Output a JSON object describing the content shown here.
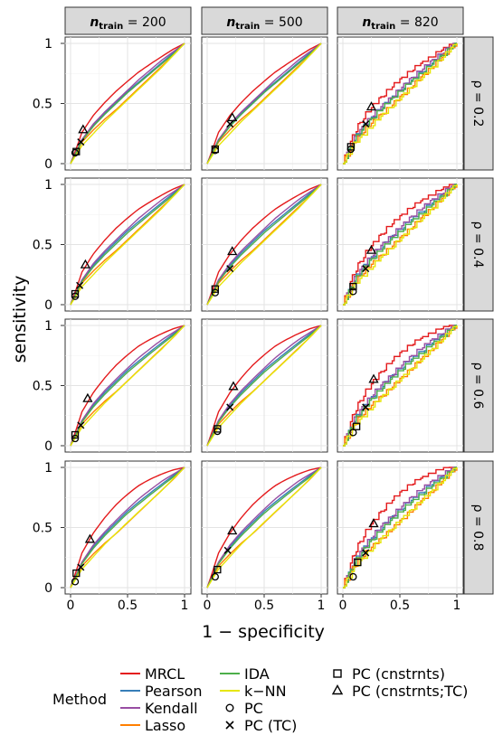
{
  "chart_data": {
    "type": "line",
    "xlabel": "1 − specificity",
    "ylabel": "sensitivity",
    "xlim": [
      0,
      1
    ],
    "ylim": [
      0,
      1
    ],
    "x_ticks": [
      "0",
      "0.5",
      "1"
    ],
    "y_ticks": [
      "0",
      "0.5",
      "1"
    ],
    "grid": true,
    "legend_position": "bottom",
    "legend_title": "Method",
    "columns": [
      {
        "prefix": "n",
        "subscript": "train",
        "value": "= 200"
      },
      {
        "prefix": "n",
        "subscript": "train",
        "value": "= 500"
      },
      {
        "prefix": "n",
        "subscript": "train",
        "value": "= 820"
      }
    ],
    "rows": [
      "ρ = 0.2",
      "ρ = 0.4",
      "ρ = 0.6",
      "ρ = 0.8"
    ],
    "series": [
      {
        "name": "MRCL",
        "color": "#e41a1c",
        "base": [
          [
            0,
            0
          ],
          [
            0.05,
            0.12
          ],
          [
            0.1,
            0.25
          ],
          [
            0.2,
            0.38
          ],
          [
            0.3,
            0.48
          ],
          [
            0.4,
            0.57
          ],
          [
            0.5,
            0.65
          ],
          [
            0.6,
            0.73
          ],
          [
            0.7,
            0.8
          ],
          [
            0.8,
            0.87
          ],
          [
            0.9,
            0.94
          ],
          [
            1,
            1
          ]
        ],
        "bonus": [
          0.05,
          0.1,
          0.15,
          0.18
        ]
      },
      {
        "name": "Pearson",
        "color": "#377eb8",
        "base": [
          [
            0,
            0
          ],
          [
            0.1,
            0.2
          ],
          [
            0.2,
            0.32
          ],
          [
            0.3,
            0.42
          ],
          [
            0.4,
            0.51
          ],
          [
            0.5,
            0.6
          ],
          [
            0.6,
            0.68
          ],
          [
            0.7,
            0.76
          ],
          [
            0.8,
            0.84
          ],
          [
            0.9,
            0.92
          ],
          [
            1,
            1
          ]
        ],
        "bonus": [
          0,
          0.02,
          0.04,
          0.05
        ]
      },
      {
        "name": "Kendall",
        "color": "#984ea3",
        "base": [
          [
            0,
            0
          ],
          [
            0.1,
            0.2
          ],
          [
            0.2,
            0.33
          ],
          [
            0.3,
            0.43
          ],
          [
            0.4,
            0.52
          ],
          [
            0.5,
            0.61
          ],
          [
            0.6,
            0.7
          ],
          [
            0.7,
            0.78
          ],
          [
            0.8,
            0.86
          ],
          [
            0.9,
            0.93
          ],
          [
            1,
            1
          ]
        ],
        "bonus": [
          0,
          0.03,
          0.05,
          0.06
        ]
      },
      {
        "name": "Lasso",
        "color": "#ff7f00",
        "base": [
          [
            0,
            0
          ],
          [
            0.1,
            0.18
          ],
          [
            0.2,
            0.28
          ],
          [
            0.3,
            0.37
          ],
          [
            0.4,
            0.45
          ],
          [
            0.5,
            0.54
          ],
          [
            0.6,
            0.63
          ],
          [
            0.7,
            0.72
          ],
          [
            0.8,
            0.81
          ],
          [
            0.9,
            0.9
          ],
          [
            1,
            1
          ]
        ],
        "bonus": [
          0,
          0,
          0,
          0
        ]
      },
      {
        "name": "IDA",
        "color": "#4daf4a",
        "base": [
          [
            0,
            0
          ],
          [
            0.1,
            0.19
          ],
          [
            0.2,
            0.31
          ],
          [
            0.3,
            0.41
          ],
          [
            0.4,
            0.5
          ],
          [
            0.5,
            0.59
          ],
          [
            0.6,
            0.67
          ],
          [
            0.7,
            0.75
          ],
          [
            0.8,
            0.83
          ],
          [
            0.9,
            0.91
          ],
          [
            1,
            1
          ]
        ],
        "bonus": [
          0,
          0.01,
          0.03,
          0.04
        ]
      },
      {
        "name": "k−NN",
        "color": "#e6e60a",
        "base": [
          [
            0,
            0
          ],
          [
            0.1,
            0.15
          ],
          [
            0.2,
            0.25
          ],
          [
            0.3,
            0.35
          ],
          [
            0.4,
            0.44
          ],
          [
            0.5,
            0.53
          ],
          [
            0.6,
            0.62
          ],
          [
            0.7,
            0.71
          ],
          [
            0.8,
            0.8
          ],
          [
            0.9,
            0.9
          ],
          [
            1,
            1
          ]
        ],
        "bonus": [
          0,
          0,
          0.01,
          0.02
        ]
      }
    ],
    "point_methods": [
      {
        "name": "PC",
        "shape": "circle"
      },
      {
        "name": "PC (TC)",
        "shape": "cross"
      },
      {
        "name": "PC (cnstrnts)",
        "shape": "square"
      },
      {
        "name": "PC (cnstrnts;TC)",
        "shape": "triangle"
      }
    ],
    "panels": [
      {
        "row": 0,
        "col": 0,
        "points": [
          [
            0.04,
            0.09
          ],
          [
            0.09,
            0.18
          ],
          [
            0.05,
            0.1
          ],
          [
            0.11,
            0.28
          ]
        ]
      },
      {
        "row": 0,
        "col": 1,
        "points": [
          [
            0.07,
            0.11
          ],
          [
            0.2,
            0.33
          ],
          [
            0.07,
            0.12
          ],
          [
            0.22,
            0.38
          ]
        ]
      },
      {
        "row": 0,
        "col": 2,
        "points": [
          [
            0.07,
            0.12
          ],
          [
            0.2,
            0.33
          ],
          [
            0.07,
            0.14
          ],
          [
            0.25,
            0.47
          ]
        ]
      },
      {
        "row": 1,
        "col": 0,
        "points": [
          [
            0.04,
            0.07
          ],
          [
            0.08,
            0.16
          ],
          [
            0.04,
            0.09
          ],
          [
            0.13,
            0.33
          ]
        ]
      },
      {
        "row": 1,
        "col": 1,
        "points": [
          [
            0.07,
            0.1
          ],
          [
            0.2,
            0.3
          ],
          [
            0.07,
            0.13
          ],
          [
            0.22,
            0.44
          ]
        ]
      },
      {
        "row": 1,
        "col": 2,
        "points": [
          [
            0.09,
            0.11
          ],
          [
            0.2,
            0.3
          ],
          [
            0.09,
            0.15
          ],
          [
            0.25,
            0.45
          ]
        ]
      },
      {
        "row": 2,
        "col": 0,
        "points": [
          [
            0.04,
            0.06
          ],
          [
            0.09,
            0.17
          ],
          [
            0.04,
            0.09
          ],
          [
            0.15,
            0.39
          ]
        ]
      },
      {
        "row": 2,
        "col": 1,
        "points": [
          [
            0.09,
            0.12
          ],
          [
            0.2,
            0.32
          ],
          [
            0.09,
            0.14
          ],
          [
            0.23,
            0.49
          ]
        ]
      },
      {
        "row": 2,
        "col": 2,
        "points": [
          [
            0.09,
            0.11
          ],
          [
            0.2,
            0.32
          ],
          [
            0.12,
            0.16
          ],
          [
            0.27,
            0.55
          ]
        ]
      },
      {
        "row": 3,
        "col": 0,
        "points": [
          [
            0.04,
            0.05
          ],
          [
            0.09,
            0.17
          ],
          [
            0.05,
            0.12
          ],
          [
            0.17,
            0.4
          ]
        ]
      },
      {
        "row": 3,
        "col": 1,
        "points": [
          [
            0.07,
            0.09
          ],
          [
            0.18,
            0.31
          ],
          [
            0.09,
            0.15
          ],
          [
            0.22,
            0.47
          ]
        ]
      },
      {
        "row": 3,
        "col": 2,
        "points": [
          [
            0.09,
            0.09
          ],
          [
            0.2,
            0.29
          ],
          [
            0.13,
            0.21
          ],
          [
            0.27,
            0.53
          ]
        ]
      }
    ]
  }
}
